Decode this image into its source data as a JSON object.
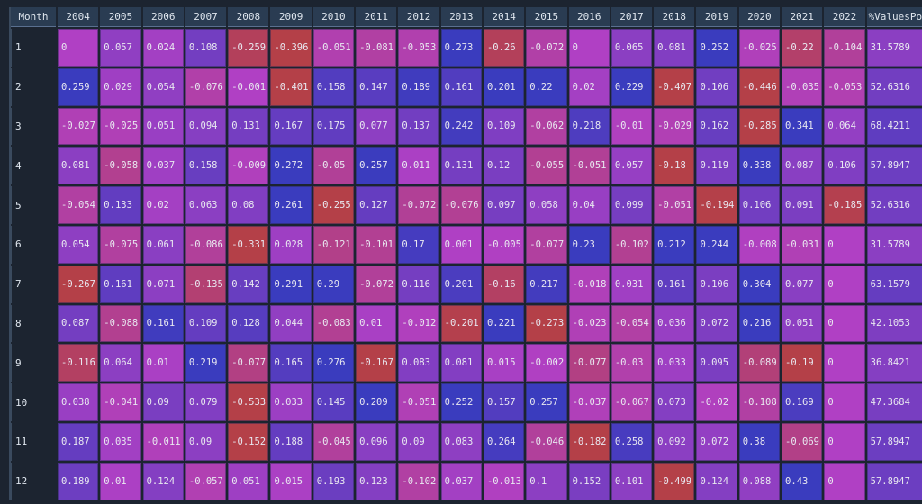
{
  "table": {
    "header": [
      "Month",
      "2004",
      "2005",
      "2006",
      "2007",
      "2008",
      "2009",
      "2010",
      "2011",
      "2012",
      "2013",
      "2014",
      "2015",
      "2016",
      "2017",
      "2018",
      "2019",
      "2020",
      "2021",
      "2022",
      "%ValuesPos"
    ],
    "rows": [
      [
        "1",
        "0",
        "0.057",
        "0.024",
        "0.108",
        "-0.259",
        "-0.396",
        "-0.051",
        "-0.081",
        "-0.053",
        "0.273",
        "-0.26",
        "-0.072",
        "0",
        "0.065",
        "0.081",
        "0.252",
        "-0.025",
        "-0.22",
        "-0.104",
        "31.5789"
      ],
      [
        "2",
        "0.259",
        "0.029",
        "0.054",
        "-0.076",
        "-0.001",
        "-0.401",
        "0.158",
        "0.147",
        "0.189",
        "0.161",
        "0.201",
        "0.22",
        "0.02",
        "0.229",
        "-0.407",
        "0.106",
        "-0.446",
        "-0.035",
        "-0.053",
        "52.6316"
      ],
      [
        "3",
        "-0.027",
        "-0.025",
        "0.051",
        "0.094",
        "0.131",
        "0.167",
        "0.175",
        "0.077",
        "0.137",
        "0.242",
        "0.109",
        "-0.062",
        "0.218",
        "-0.01",
        "-0.029",
        "0.162",
        "-0.285",
        "0.341",
        "0.064",
        "68.4211"
      ],
      [
        "4",
        "0.081",
        "-0.058",
        "0.037",
        "0.158",
        "-0.009",
        "0.272",
        "-0.05",
        "0.257",
        "0.011",
        "0.131",
        "0.12",
        "-0.055",
        "-0.051",
        "0.057",
        "-0.18",
        "0.119",
        "0.338",
        "0.087",
        "0.106",
        "57.8947"
      ],
      [
        "5",
        "-0.054",
        "0.133",
        "0.02",
        "0.063",
        "0.08",
        "0.261",
        "-0.255",
        "0.127",
        "-0.072",
        "-0.076",
        "0.097",
        "0.058",
        "0.04",
        "0.099",
        "-0.051",
        "-0.194",
        "0.106",
        "0.091",
        "-0.185",
        "52.6316"
      ],
      [
        "6",
        "0.054",
        "-0.075",
        "0.061",
        "-0.086",
        "-0.331",
        "0.028",
        "-0.121",
        "-0.101",
        "0.17",
        "0.001",
        "-0.005",
        "-0.077",
        "0.23",
        "-0.102",
        "0.212",
        "0.244",
        "-0.008",
        "-0.031",
        "0",
        "31.5789"
      ],
      [
        "7",
        "-0.267",
        "0.161",
        "0.071",
        "-0.135",
        "0.142",
        "0.291",
        "0.29",
        "-0.072",
        "0.116",
        "0.201",
        "-0.16",
        "0.217",
        "-0.018",
        "0.031",
        "0.161",
        "0.106",
        "0.304",
        "0.077",
        "0",
        "63.1579"
      ],
      [
        "8",
        "0.087",
        "-0.088",
        "0.161",
        "0.109",
        "0.128",
        "0.044",
        "-0.083",
        "0.01",
        "-0.012",
        "-0.201",
        "0.221",
        "-0.273",
        "-0.023",
        "-0.054",
        "0.036",
        "0.072",
        "0.216",
        "0.051",
        "0",
        "42.1053"
      ],
      [
        "9",
        "-0.116",
        "0.064",
        "0.01",
        "0.219",
        "-0.077",
        "0.165",
        "0.276",
        "-0.167",
        "0.083",
        "0.081",
        "0.015",
        "-0.002",
        "-0.077",
        "-0.03",
        "0.033",
        "0.095",
        "-0.089",
        "-0.19",
        "0",
        "36.8421"
      ],
      [
        "10",
        "0.038",
        "-0.041",
        "0.09",
        "0.079",
        "-0.533",
        "0.033",
        "0.145",
        "0.209",
        "-0.051",
        "0.252",
        "0.157",
        "0.257",
        "-0.037",
        "-0.067",
        "0.073",
        "-0.02",
        "-0.108",
        "0.169",
        "0",
        "47.3684"
      ],
      [
        "11",
        "0.187",
        "0.035",
        "-0.011",
        "0.09",
        "-0.152",
        "0.188",
        "-0.045",
        "0.096",
        "0.09",
        "0.083",
        "0.264",
        "-0.046",
        "-0.182",
        "0.258",
        "0.092",
        "0.072",
        "0.38",
        "-0.069",
        "0",
        "57.8947"
      ],
      [
        "12",
        "0.189",
        "0.01",
        "0.124",
        "-0.057",
        "0.051",
        "0.015",
        "0.193",
        "0.123",
        "-0.102",
        "0.037",
        "-0.013",
        "0.1",
        "0.152",
        "0.101",
        "-0.499",
        "0.124",
        "0.088",
        "0.43",
        "0",
        "57.8947"
      ]
    ]
  }
}
